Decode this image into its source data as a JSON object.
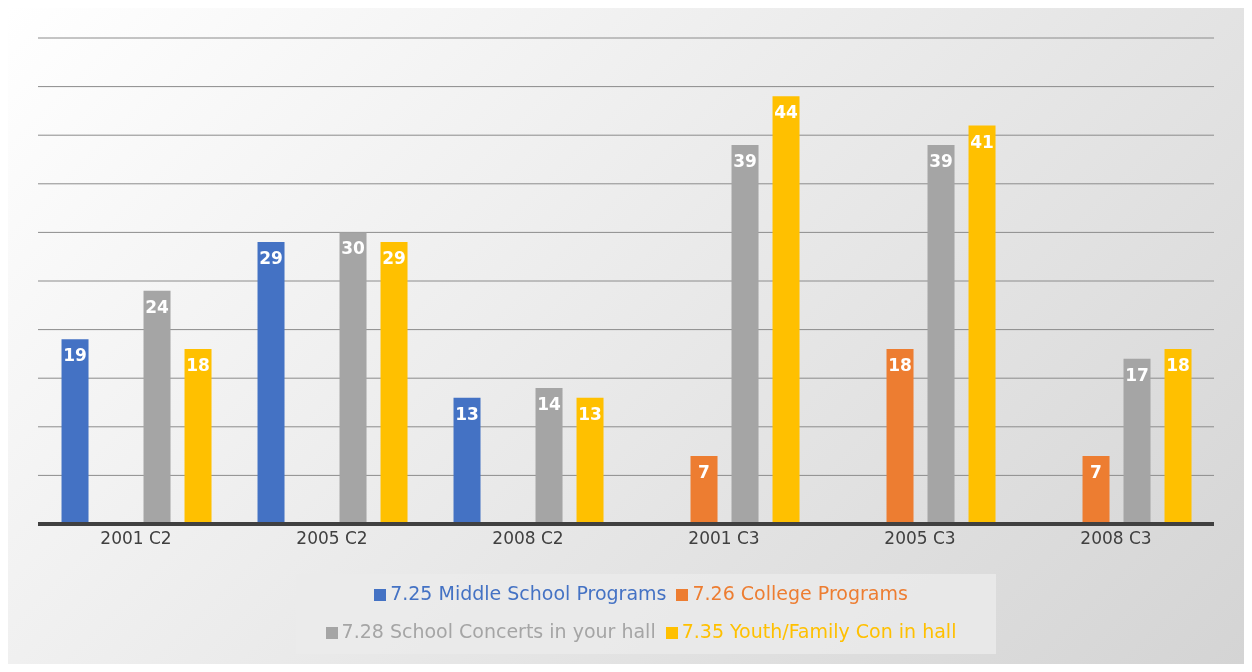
{
  "chart_data": {
    "type": "bar",
    "categories": [
      "2001 C2",
      "2005 C2",
      "2008 C2",
      "2001 C3",
      "2005 C3",
      "2008 C3"
    ],
    "series": [
      {
        "name": "7.25 Middle School Programs",
        "color": "#4472c4",
        "values": [
          19,
          29,
          13,
          null,
          null,
          null
        ]
      },
      {
        "name": "7.26 College Programs",
        "color": "#ed7d31",
        "values": [
          null,
          null,
          null,
          7,
          18,
          7
        ]
      },
      {
        "name": "7.28 School Concerts in your hall",
        "color": "#a5a5a5",
        "values": [
          24,
          30,
          14,
          39,
          39,
          17
        ]
      },
      {
        "name": "7.35 Youth/Family Con in hall",
        "color": "#ffc000",
        "values": [
          18,
          29,
          13,
          44,
          41,
          18
        ]
      }
    ],
    "ylim": [
      0,
      50
    ],
    "yticks": [
      {
        "value": 0,
        "label": null
      },
      {
        "value": 5,
        "label": null
      },
      {
        "value": 10,
        "label": null
      },
      {
        "value": 15,
        "label": null
      },
      {
        "value": 20,
        "label": null
      },
      {
        "value": 25,
        "label": null
      },
      {
        "value": 30,
        "label": null
      },
      {
        "value": 35,
        "label": null
      },
      {
        "value": 40,
        "label": null
      },
      {
        "value": 45,
        "label": null
      },
      {
        "value": 50,
        "label": null
      }
    ],
    "tick_labels": "x",
    "grid": "y",
    "legend": "bottom",
    "data_labels": true
  }
}
